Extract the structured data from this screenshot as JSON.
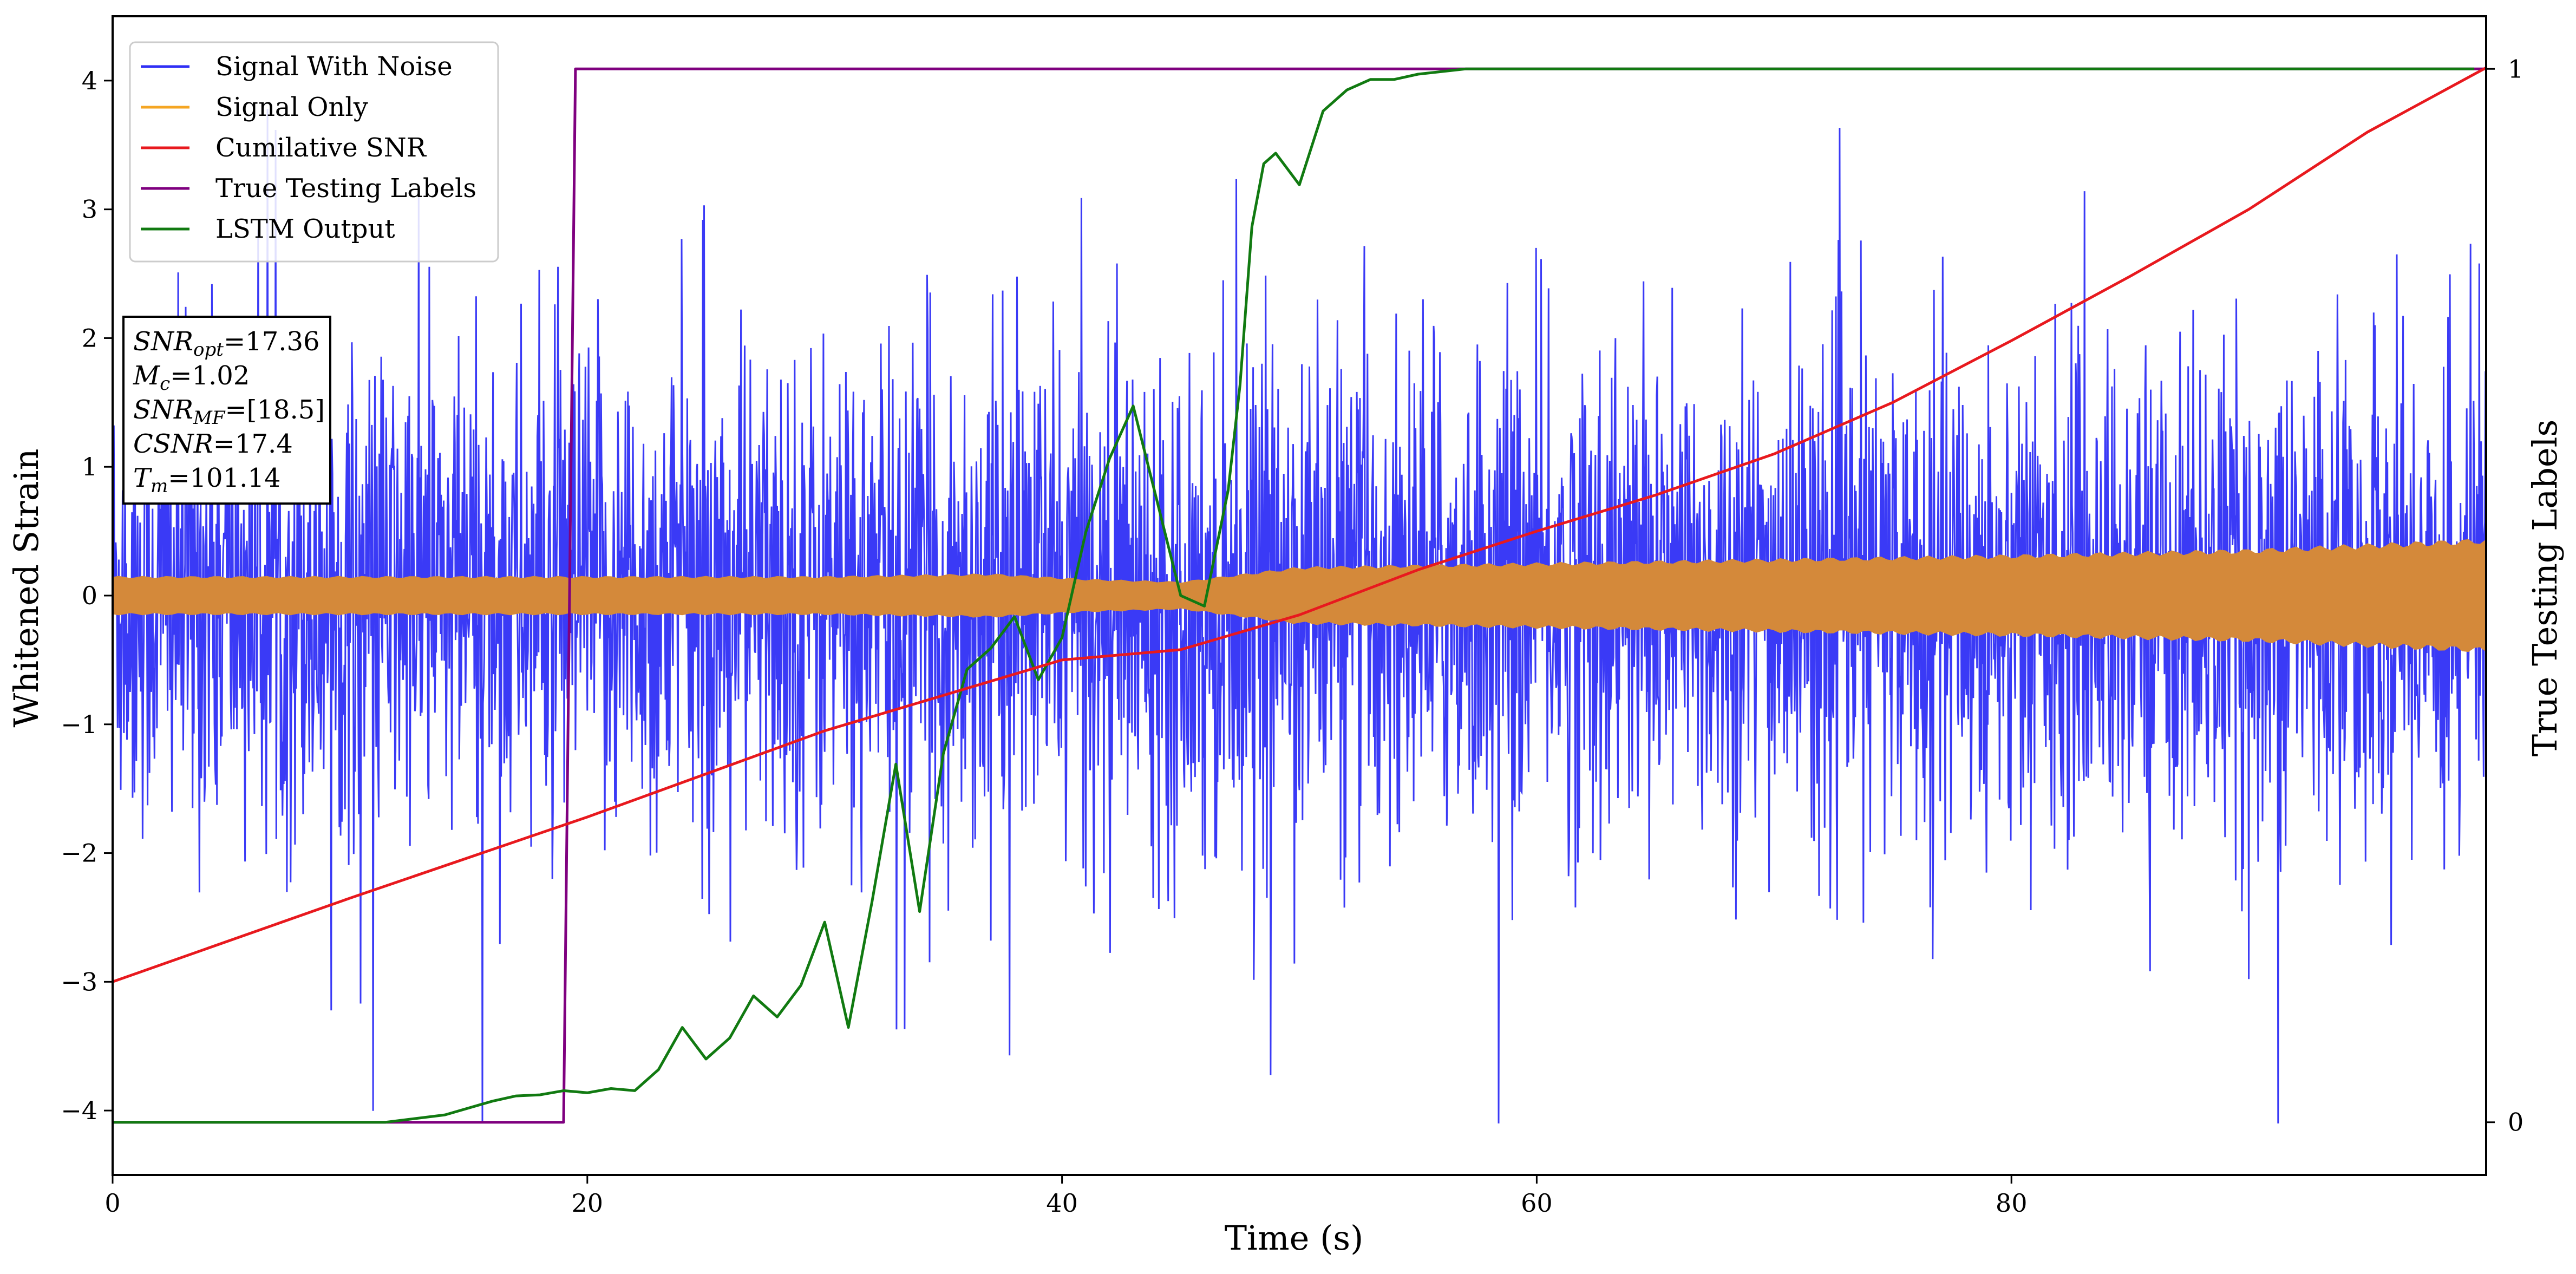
{
  "chart_data": {
    "type": "line",
    "xlabel": "Time (s)",
    "ylabel": "Whitened Strain",
    "y2label": "True Testing Labels",
    "xlim": [
      0,
      100
    ],
    "ylim": [
      -4.5,
      4.5
    ],
    "y2lim": [
      -0.05,
      1.05
    ],
    "xticks": [
      0,
      20,
      40,
      60,
      80
    ],
    "xtick_labels": [
      "0",
      "20",
      "40",
      "60",
      "80"
    ],
    "yticks": [
      -4,
      -3,
      -2,
      -1,
      0,
      1,
      2,
      3,
      4
    ],
    "ytick_labels": [
      "−4",
      "−3",
      "−2",
      "−1",
      "0",
      "1",
      "2",
      "3",
      "4"
    ],
    "y2ticks": [
      0,
      1
    ],
    "y2tick_labels": [
      "0",
      "1"
    ],
    "grid": false,
    "legend_position": "top-left",
    "series": [
      {
        "name": "Signal With Noise",
        "color": "#2f2ff5",
        "axis": "left",
        "kind": "noise",
        "approx_amplitude": 1.5,
        "peak_range": [
          -4.1,
          3.9
        ]
      },
      {
        "name": "Signal Only",
        "color": "#d4893a",
        "axis": "left",
        "kind": "envelope",
        "envelope": {
          "x": [
            0,
            10,
            20,
            30,
            37,
            41,
            45,
            50,
            60,
            70,
            80,
            90,
            100
          ],
          "y": [
            0.14,
            0.14,
            0.14,
            0.14,
            0.16,
            0.12,
            0.1,
            0.21,
            0.24,
            0.27,
            0.3,
            0.34,
            0.42
          ]
        }
      },
      {
        "name": "Cumilative SNR",
        "color": "#e8191e",
        "axis": "left",
        "x": [
          0,
          10,
          20,
          30,
          40,
          45,
          50,
          55,
          60,
          65,
          70,
          75,
          80,
          85,
          90,
          95,
          100
        ],
        "y": [
          -3.0,
          -2.35,
          -1.72,
          -1.05,
          -0.5,
          -0.42,
          -0.15,
          0.2,
          0.5,
          0.78,
          1.1,
          1.5,
          1.98,
          2.48,
          3.0,
          3.6,
          4.1
        ]
      },
      {
        "name": "True Testing Labels",
        "color": "#7f007f",
        "axis": "right",
        "x": [
          0,
          19.0,
          19.5,
          100
        ],
        "y": [
          0,
          0,
          1,
          1
        ]
      },
      {
        "name": "LSTM Output",
        "color": "#117a11",
        "axis": "right",
        "x": [
          0,
          11.5,
          14,
          16,
          17,
          18,
          18.5,
          19,
          20,
          21,
          22,
          23,
          24,
          25,
          26,
          27,
          28,
          29,
          30,
          31,
          32,
          33,
          34,
          35,
          36,
          37,
          38,
          39,
          40,
          41,
          42,
          43,
          44,
          45,
          46,
          47,
          47.5,
          48,
          48.5,
          49,
          50,
          51,
          52,
          53,
          54,
          55,
          57,
          60,
          70,
          80,
          90,
          99.5
        ],
        "y": [
          0,
          0,
          0.007,
          0.02,
          0.025,
          0.026,
          0.028,
          0.03,
          0.028,
          0.032,
          0.03,
          0.05,
          0.09,
          0.06,
          0.08,
          0.12,
          0.1,
          0.13,
          0.19,
          0.09,
          0.21,
          0.34,
          0.2,
          0.35,
          0.43,
          0.45,
          0.48,
          0.42,
          0.46,
          0.56,
          0.63,
          0.68,
          0.59,
          0.5,
          0.49,
          0.6,
          0.7,
          0.85,
          0.91,
          0.92,
          0.89,
          0.96,
          0.98,
          0.99,
          0.99,
          0.995,
          1.0,
          1.0,
          1.0,
          1.0,
          1.0,
          1.0
        ]
      }
    ]
  },
  "legend": {
    "items": [
      {
        "label": "Signal With Noise",
        "color": "#2f2ff5"
      },
      {
        "label": "Signal Only",
        "color": "#f5a623"
      },
      {
        "label": "Cumilative SNR",
        "color": "#e8191e"
      },
      {
        "label": "True Testing Labels",
        "color": "#7f007f"
      },
      {
        "label": "LSTM Output",
        "color": "#117a11"
      }
    ]
  },
  "info_box": {
    "lines": [
      {
        "sym": "SNR",
        "sub": "opt",
        "val": "=17.36"
      },
      {
        "sym": "M",
        "sub": "c",
        "val": "=1.02"
      },
      {
        "sym": "SNR",
        "sub": "MF",
        "val": "=[18.5]"
      },
      {
        "sym": "CSNR",
        "sub": "",
        "val": "=17.4"
      },
      {
        "sym": "T",
        "sub": "m",
        "val": "=101.14"
      }
    ]
  }
}
